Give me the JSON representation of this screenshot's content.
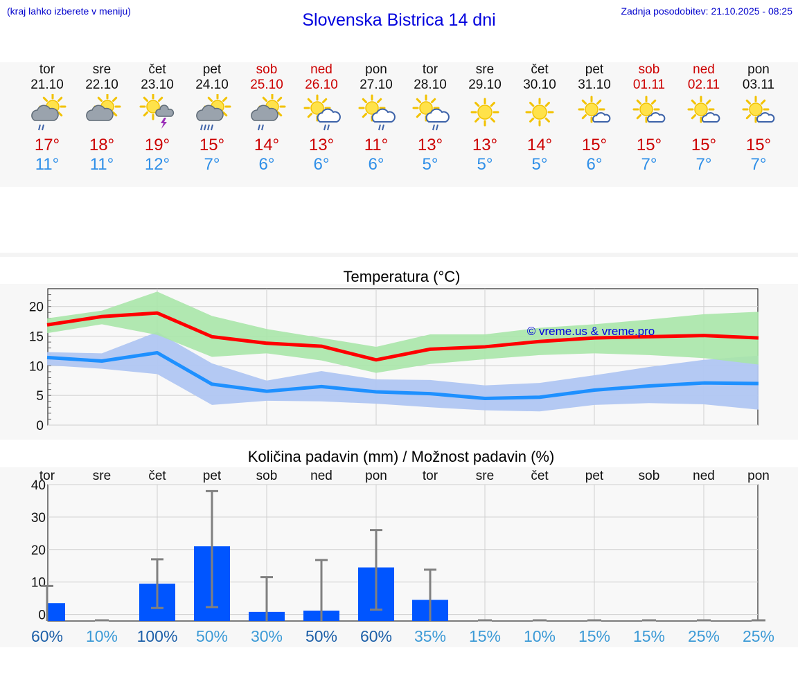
{
  "header": {
    "menu_hint": "(kraj lahko izberete v meniju)",
    "title": "Slovenska Bistrica 14 dni",
    "updated": "Zadnja posodobitev: 21.10.2025 - 08:25"
  },
  "colors": {
    "title": "#0000dd",
    "weekend": "#cc0000",
    "tmax": "#cc0000",
    "tmin": "#2f8fe8",
    "max_line": "#ff0000",
    "min_line": "#1e90ff",
    "max_band": "#a8e6a8",
    "min_band": "#b0c6f2",
    "bar": "#0055ff",
    "error_bar": "#808080"
  },
  "days": [
    {
      "name": "tor",
      "date": "21.10",
      "weekend": false,
      "icon": "partly-sunny-rain-icon",
      "tmax": "17°",
      "tmin": "11°"
    },
    {
      "name": "sre",
      "date": "22.10",
      "weekend": false,
      "icon": "partly-sunny-cloudy-icon",
      "tmax": "18°",
      "tmin": "11°"
    },
    {
      "name": "čet",
      "date": "23.10",
      "weekend": false,
      "icon": "sun-thunder-icon",
      "tmax": "19°",
      "tmin": "12°"
    },
    {
      "name": "pet",
      "date": "24.10",
      "weekend": false,
      "icon": "partly-sunny-heavy-rain-icon",
      "tmax": "15°",
      "tmin": "7°"
    },
    {
      "name": "sob",
      "date": "25.10",
      "weekend": true,
      "icon": "partly-sunny-rain-icon",
      "tmax": "14°",
      "tmin": "6°"
    },
    {
      "name": "ned",
      "date": "26.10",
      "weekend": true,
      "icon": "sun-cloud-rain-icon",
      "tmax": "13°",
      "tmin": "6°"
    },
    {
      "name": "pon",
      "date": "27.10",
      "weekend": false,
      "icon": "sun-cloud-rain-icon",
      "tmax": "11°",
      "tmin": "6°"
    },
    {
      "name": "tor",
      "date": "28.10",
      "weekend": false,
      "icon": "sun-cloud-rain-icon",
      "tmax": "13°",
      "tmin": "5°"
    },
    {
      "name": "sre",
      "date": "29.10",
      "weekend": false,
      "icon": "sun-icon",
      "tmax": "13°",
      "tmin": "5°"
    },
    {
      "name": "čet",
      "date": "30.10",
      "weekend": false,
      "icon": "sun-icon",
      "tmax": "14°",
      "tmin": "5°"
    },
    {
      "name": "pet",
      "date": "31.10",
      "weekend": false,
      "icon": "sun-small-cloud-icon",
      "tmax": "15°",
      "tmin": "6°"
    },
    {
      "name": "sob",
      "date": "01.11",
      "weekend": true,
      "icon": "sun-small-cloud-icon",
      "tmax": "15°",
      "tmin": "7°"
    },
    {
      "name": "ned",
      "date": "02.11",
      "weekend": true,
      "icon": "sun-small-cloud-icon",
      "tmax": "15°",
      "tmin": "7°"
    },
    {
      "name": "pon",
      "date": "03.11",
      "weekend": false,
      "icon": "sun-small-cloud-icon",
      "tmax": "15°",
      "tmin": "7°"
    }
  ],
  "chart_data": [
    {
      "type": "line",
      "title": "Temperatura (°C)",
      "watermark": "© vreme.us & vreme.pro",
      "ylim": [
        0,
        23
      ],
      "yticks": [
        0,
        5,
        10,
        15,
        20
      ],
      "grid": true,
      "series": [
        {
          "role": "max",
          "values": [
            16.9,
            18.3,
            18.9,
            14.9,
            13.8,
            13.3,
            11.0,
            12.8,
            13.2,
            14.1,
            14.7,
            14.9,
            15.1,
            14.7
          ]
        },
        {
          "role": "min",
          "values": [
            11.4,
            10.8,
            12.2,
            6.9,
            5.7,
            6.5,
            5.6,
            5.3,
            4.5,
            4.7,
            5.9,
            6.6,
            7.1,
            7.0
          ]
        }
      ],
      "bands": [
        {
          "role": "max_range",
          "upper": [
            18.0,
            19.3,
            22.5,
            18.4,
            16.2,
            14.7,
            13.2,
            15.3,
            15.3,
            16.4,
            17.0,
            17.8,
            18.7,
            19.1
          ],
          "lower": [
            15.5,
            17.0,
            15.2,
            11.5,
            12.1,
            10.9,
            8.8,
            10.3,
            11.1,
            11.8,
            12.1,
            11.8,
            11.3,
            10.2
          ]
        },
        {
          "role": "min_range",
          "upper": [
            12.3,
            12.1,
            15.7,
            10.4,
            7.5,
            9.1,
            7.7,
            7.6,
            6.7,
            7.1,
            8.4,
            9.8,
            11.0,
            11.7
          ]
        },
        {
          "role": "min_range_lower",
          "lower": [
            10.1,
            9.5,
            8.6,
            3.4,
            4.1,
            4.0,
            3.6,
            3.0,
            2.5,
            2.3,
            3.4,
            3.7,
            3.5,
            2.6
          ]
        }
      ]
    },
    {
      "type": "bar",
      "title": "Količina padavin (mm) / Možnost padavin (%)",
      "categories": [
        "tor",
        "sre",
        "čet",
        "pet",
        "sob",
        "ned",
        "pon",
        "tor",
        "sre",
        "čet",
        "pet",
        "sob",
        "ned",
        "pon"
      ],
      "values": [
        3.5,
        0,
        9.5,
        21,
        0.8,
        1.2,
        14.5,
        4.5,
        0,
        0,
        0,
        0,
        0,
        0
      ],
      "error_low": [
        null,
        null,
        2,
        2.3,
        null,
        null,
        1.5,
        null,
        null,
        null,
        null,
        null,
        null,
        null
      ],
      "error_high": [
        8.8,
        0,
        17,
        38,
        11.5,
        16.8,
        26,
        13.8,
        0,
        0,
        0,
        0,
        0,
        0
      ],
      "probability": [
        "60%",
        "10%",
        "100%",
        "50%",
        "30%",
        "50%",
        "60%",
        "35%",
        "15%",
        "10%",
        "15%",
        "15%",
        "25%",
        "25%"
      ],
      "probability_levels": [
        "high",
        "low",
        "high",
        "low",
        "low",
        "high",
        "high",
        "low",
        "low",
        "low",
        "low",
        "low",
        "low",
        "low"
      ],
      "ylim": [
        -2,
        40
      ],
      "yticks": [
        0,
        10,
        20,
        30,
        40
      ],
      "grid": true
    }
  ]
}
